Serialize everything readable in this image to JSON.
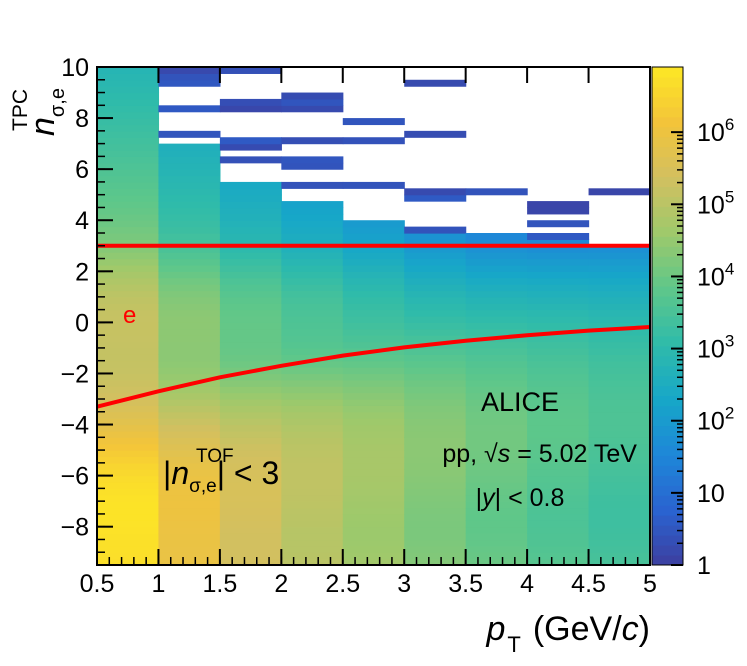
{
  "colors": {
    "palette": [
      "#3d3fa0",
      "#2a63d0",
      "#1e87d8",
      "#17a7c8",
      "#2fbbaa",
      "#5ec78a",
      "#9ec96b",
      "#d2c060",
      "#f3c43a",
      "#fde725"
    ],
    "boundary_line": "#ff0000",
    "electron_label": "#ff0000",
    "axis": "#000000",
    "background": "#ffffff"
  },
  "chart_data": {
    "type": "heatmap",
    "xlabel": {
      "main": "p",
      "sub": "T",
      "units": "(GeV/",
      "units_italic": "c",
      "units_close": ")"
    },
    "ylabel": {
      "main": "n",
      "sub": "σ,e",
      "sup": "TPC"
    },
    "xlim": [
      0.5,
      5
    ],
    "ylim": [
      -9.5,
      10
    ],
    "x_ticks": [
      0.5,
      1,
      1.5,
      2,
      2.5,
      3,
      3.5,
      4,
      4.5,
      5
    ],
    "x_tick_labels": [
      "0.5",
      "1",
      "1.5",
      "2",
      "2.5",
      "3",
      "3.5",
      "4",
      "4.5",
      "5"
    ],
    "y_ticks": [
      -8,
      -6,
      -4,
      -2,
      0,
      2,
      4,
      6,
      8,
      10
    ],
    "y_tick_labels": [
      "−8",
      "−6",
      "−4",
      "−2",
      "0",
      "2",
      "4",
      "6",
      "8",
      "10"
    ],
    "z_scale": "log",
    "zlim": [
      1,
      8000000
    ],
    "z_ticks": [
      1,
      10,
      100,
      1000,
      10000,
      100000,
      1000000
    ],
    "z_tick_labels": [
      "1",
      "10",
      "10^2",
      "10^3",
      "10^4",
      "10^5",
      "10^6"
    ],
    "x_bin_edges": [
      0.5,
      1,
      1.5,
      2,
      2.5,
      3,
      3.5,
      4,
      4.5,
      5
    ],
    "y_bin_width": 0.25,
    "column_profiles": [
      {
        "x": [
          0.5,
          1
        ],
        "hadron_band_peak_y": -7.2,
        "hadron_band_sigma": 1.3,
        "peak_counts": 5000000,
        "electron_peak_y": 0.2,
        "upper_sparse_start_y": 10.5
      },
      {
        "x": [
          1,
          1.5
        ],
        "hadron_band_peak_y": -6.8,
        "hadron_band_sigma": 1.5,
        "peak_counts": 800000,
        "electron_peak_y": 0.2,
        "upper_sparse_start_y": 7.0
      },
      {
        "x": [
          1.5,
          2
        ],
        "hadron_band_peak_y": -6.3,
        "hadron_band_sigma": 1.6,
        "peak_counts": 250000,
        "electron_peak_y": 0.2,
        "upper_sparse_start_y": 5.5
      },
      {
        "x": [
          2,
          2.5
        ],
        "hadron_band_peak_y": -5.8,
        "hadron_band_sigma": 1.7,
        "peak_counts": 110000,
        "electron_peak_y": 0.2,
        "upper_sparse_start_y": 4.8
      },
      {
        "x": [
          2.5,
          3
        ],
        "hadron_band_peak_y": -5.3,
        "hadron_band_sigma": 1.8,
        "peak_counts": 50000,
        "electron_peak_y": 0.2,
        "upper_sparse_start_y": 4.0
      },
      {
        "x": [
          3,
          3.5
        ],
        "hadron_band_peak_y": -4.8,
        "hadron_band_sigma": 1.9,
        "peak_counts": 22000,
        "electron_peak_y": 0.2,
        "upper_sparse_start_y": 3.6
      },
      {
        "x": [
          3.5,
          4
        ],
        "hadron_band_peak_y": -4.4,
        "hadron_band_sigma": 2.0,
        "peak_counts": 11000,
        "electron_peak_y": 0.2,
        "upper_sparse_start_y": 3.4
      },
      {
        "x": [
          4,
          4.5
        ],
        "hadron_band_peak_y": -4.0,
        "hadron_band_sigma": 2.1,
        "peak_counts": 6000,
        "electron_peak_y": 0.2,
        "upper_sparse_start_y": 3.2
      },
      {
        "x": [
          4.5,
          5
        ],
        "hadron_band_peak_y": -3.7,
        "hadron_band_sigma": 2.2,
        "peak_counts": 3500,
        "electron_peak_y": 0.2,
        "upper_sparse_start_y": 3.1
      }
    ],
    "lines": [
      {
        "kind": "horizontal",
        "y": 3.0,
        "color": "#ff0000"
      },
      {
        "kind": "curve",
        "color": "#ff0000",
        "x": [
          0.5,
          1.0,
          1.5,
          2.0,
          2.5,
          3.0,
          3.5,
          4.0,
          4.5,
          5.0
        ],
        "y": [
          -3.3,
          -2.7,
          -2.15,
          -1.7,
          -1.3,
          -0.98,
          -0.72,
          -0.5,
          -0.32,
          -0.18
        ]
      }
    ],
    "annotations": {
      "electron_label": "e",
      "experiment": "ALICE",
      "system_prefix": "pp, ",
      "sqrt_symbol": "√",
      "s_var": "s",
      "system_suffix": " = 5.02 TeV",
      "rapidity_open": "|",
      "rapidity_var": "y",
      "rapidity_close": "| < 0.8",
      "tof_cut_open": "|",
      "tof_cut_var": "n",
      "tof_cut_sub": "σ,e",
      "tof_cut_sup": "TOF",
      "tof_cut_close": "| < 3"
    }
  }
}
